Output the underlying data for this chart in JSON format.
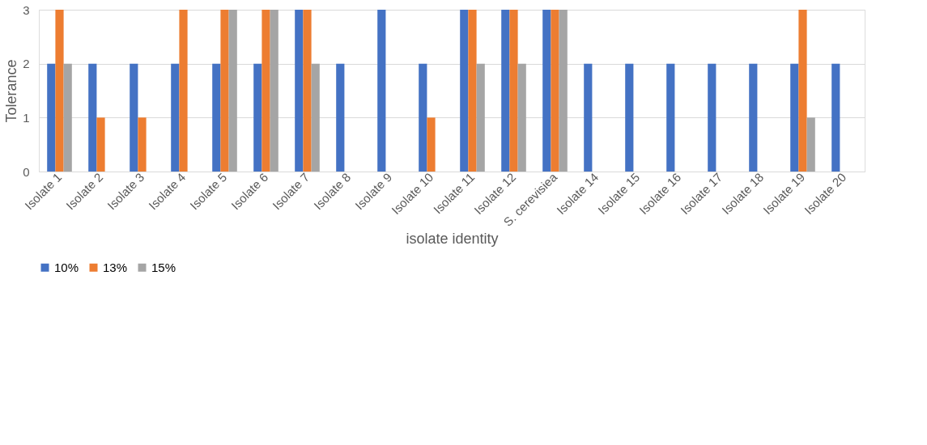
{
  "chart_data": {
    "type": "bar",
    "xlabel": "isolate identity",
    "ylabel": "Tolerance",
    "categories": [
      "Isolate 1",
      "Isolate 2",
      "Isolate 3",
      "Isolate 4",
      "Isolate 5",
      "Isolate 6",
      "Isolate 7",
      "Isolate 8",
      "Isolate 9",
      "Isolate 10",
      "Isolate 11",
      "Isolate 12",
      "S. cerevisiea",
      "Isolate 14",
      "Isolate 15",
      "Isolate 16",
      "Isolate 17",
      "Isolate 18",
      "Isolate 19",
      "Isolate 20"
    ],
    "series": [
      {
        "name": "10%",
        "color": "#4472c4",
        "values": [
          2,
          2,
          2,
          2,
          2,
          2,
          3,
          2,
          3,
          2,
          3,
          3,
          3,
          2,
          2,
          2,
          2,
          2,
          2,
          2
        ]
      },
      {
        "name": "13%",
        "color": "#ed7d31",
        "values": [
          3,
          1,
          1,
          3,
          3,
          3,
          3,
          0,
          0,
          1,
          3,
          3,
          3,
          0,
          0,
          0,
          0,
          0,
          3,
          0
        ]
      },
      {
        "name": "15%",
        "color": "#a5a5a5",
        "values": [
          2,
          0,
          0,
          0,
          3,
          3,
          2,
          0,
          0,
          0,
          2,
          2,
          3,
          0,
          0,
          0,
          0,
          0,
          1,
          0
        ]
      }
    ],
    "ylim": [
      0,
      3
    ],
    "yticks": [
      0,
      1,
      2,
      3
    ],
    "grid": "y",
    "legend": "bottom"
  }
}
